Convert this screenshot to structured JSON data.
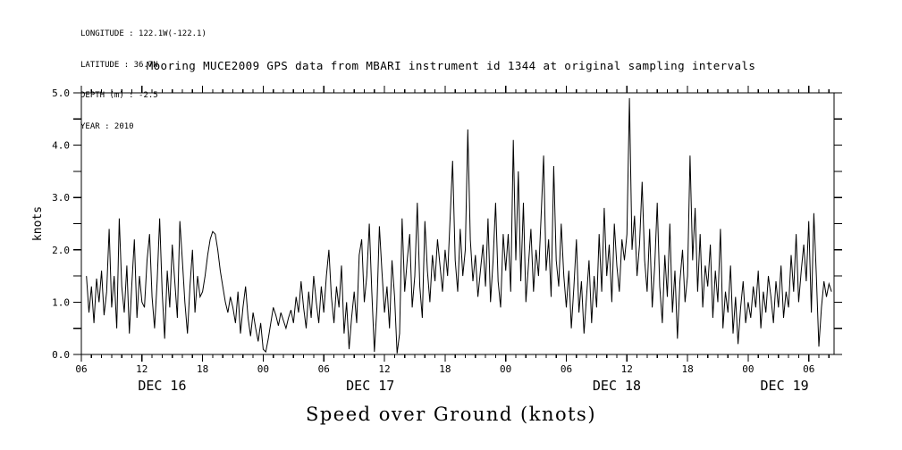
{
  "header": {
    "metadata_lines": [
      "LONGITUDE : 122.1W(-122.1)",
      "LATITUDE : 36.7N",
      "DEPTH (m) : -2.5",
      "YEAR : 2010"
    ],
    "title": "Mooring MUCE2009 GPS data from MBARI instrument id 1344 at original sampling intervals"
  },
  "caption": "Speed over Ground (knots)",
  "colors": {
    "foreground": "#000000",
    "background": "#ffffff"
  },
  "chart_data": {
    "type": "line",
    "title": "Mooring MUCE2009 GPS data from MBARI instrument id 1344 at original sampling intervals",
    "xlabel": "Speed over Ground (knots)",
    "ylabel": "knots",
    "ylim": [
      0.0,
      5.0
    ],
    "y_major_tick_step": 1.0,
    "y_minor_tick_step": 0.5,
    "y_tick_labels": [
      "0.0",
      "1.0",
      "2.0",
      "3.0",
      "4.0",
      "5.0"
    ],
    "grid": false,
    "legend": "none",
    "line_color": "#000000",
    "x_axis": {
      "start": "DEC 16 2010 06:00",
      "total_hours": 74.5,
      "major_tick_every_hours": 6,
      "minor_tick_every_hours": 1,
      "major_tick_labels": [
        "06",
        "12",
        "18",
        "00",
        "06",
        "12",
        "18",
        "00",
        "06",
        "12",
        "18",
        "00",
        "06"
      ],
      "date_labels": [
        {
          "label": "DEC 16",
          "hour": 8.0
        },
        {
          "label": "DEC 17",
          "hour": 28.6
        },
        {
          "label": "DEC 18",
          "hour": 53.0
        },
        {
          "label": "DEC 19",
          "hour": 69.6
        }
      ]
    },
    "series": [
      {
        "name": "speed over ground",
        "units": "knots",
        "start_hour": 0.5,
        "interval_hours": 0.25,
        "values": [
          1.5,
          0.8,
          1.3,
          0.6,
          1.45,
          1.0,
          1.6,
          0.75,
          1.2,
          2.4,
          0.9,
          1.5,
          0.5,
          2.6,
          1.3,
          0.8,
          1.7,
          0.4,
          1.35,
          2.2,
          0.7,
          1.5,
          1.0,
          0.9,
          1.8,
          2.3,
          1.1,
          0.5,
          1.4,
          2.6,
          1.2,
          0.3,
          1.6,
          0.9,
          2.1,
          1.4,
          0.7,
          2.55,
          1.8,
          1.0,
          0.4,
          1.3,
          2.0,
          0.8,
          1.5,
          1.1,
          1.2,
          1.5,
          1.9,
          2.2,
          2.35,
          2.3,
          2.0,
          1.6,
          1.3,
          1.0,
          0.8,
          1.1,
          0.9,
          0.6,
          1.2,
          0.4,
          0.9,
          1.3,
          0.7,
          0.35,
          0.8,
          0.5,
          0.25,
          0.6,
          0.1,
          0.05,
          0.3,
          0.6,
          0.9,
          0.75,
          0.55,
          0.8,
          0.65,
          0.5,
          0.7,
          0.85,
          0.6,
          1.1,
          0.8,
          1.4,
          0.9,
          0.5,
          1.2,
          0.7,
          1.5,
          1.0,
          0.6,
          1.3,
          0.8,
          1.5,
          2.0,
          1.1,
          0.6,
          1.3,
          0.9,
          1.7,
          0.4,
          1.0,
          0.1,
          0.7,
          1.2,
          0.6,
          1.9,
          2.2,
          1.0,
          1.5,
          2.5,
          1.2,
          0.05,
          0.9,
          2.45,
          1.6,
          0.8,
          1.3,
          0.5,
          1.8,
          1.1,
          0.02,
          0.4,
          2.6,
          1.2,
          1.8,
          2.3,
          0.9,
          1.5,
          2.9,
          1.3,
          0.7,
          2.55,
          1.6,
          1.0,
          1.9,
          1.4,
          2.2,
          1.7,
          1.2,
          2.0,
          1.5,
          2.6,
          3.7,
          1.8,
          1.2,
          2.4,
          1.5,
          2.0,
          4.3,
          2.2,
          1.4,
          1.9,
          1.1,
          1.6,
          2.1,
          1.3,
          2.6,
          1.0,
          1.8,
          2.9,
          1.4,
          0.9,
          2.3,
          1.6,
          2.3,
          1.2,
          4.1,
          1.8,
          3.5,
          1.4,
          2.9,
          1.0,
          1.7,
          2.4,
          1.2,
          2.0,
          1.5,
          2.6,
          3.8,
          1.6,
          2.2,
          1.1,
          3.6,
          1.8,
          1.3,
          2.5,
          1.5,
          0.9,
          1.6,
          0.5,
          1.3,
          2.2,
          0.8,
          1.4,
          0.4,
          1.1,
          1.8,
          0.6,
          1.5,
          0.9,
          2.3,
          1.2,
          2.8,
          1.5,
          2.1,
          1.0,
          2.5,
          1.7,
          1.2,
          2.2,
          1.8,
          2.3,
          4.9,
          2.0,
          2.65,
          1.5,
          2.1,
          3.3,
          1.8,
          1.2,
          2.4,
          0.9,
          1.7,
          2.9,
          1.3,
          0.6,
          1.9,
          1.1,
          2.5,
          0.8,
          1.6,
          0.3,
          1.4,
          2.0,
          1.0,
          1.5,
          3.8,
          1.8,
          2.8,
          1.2,
          2.3,
          0.9,
          1.7,
          1.3,
          2.1,
          0.7,
          1.6,
          1.0,
          2.4,
          0.5,
          1.2,
          0.8,
          1.7,
          0.4,
          1.1,
          0.2,
          0.9,
          1.4,
          0.6,
          1.0,
          0.7,
          1.3,
          0.9,
          1.6,
          0.5,
          1.2,
          0.8,
          1.5,
          1.1,
          0.6,
          1.4,
          0.9,
          1.7,
          0.7,
          1.2,
          0.9,
          1.9,
          1.2,
          2.3,
          1.0,
          1.6,
          2.1,
          1.4,
          2.55,
          0.8,
          2.7,
          1.5,
          0.15,
          0.9,
          1.4,
          1.1,
          1.35,
          1.2
        ]
      }
    ]
  }
}
